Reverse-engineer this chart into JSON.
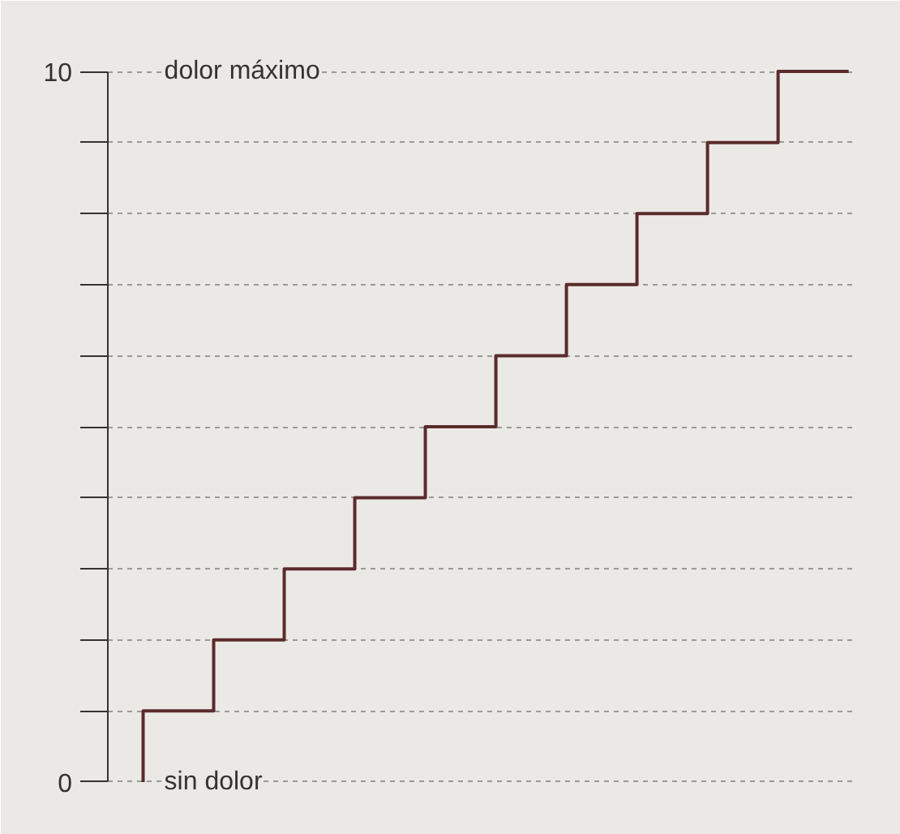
{
  "chart_data": {
    "type": "step",
    "categories": [
      null,
      null,
      null,
      null,
      null,
      null,
      null,
      null,
      null,
      null,
      null
    ],
    "values": [
      0,
      1,
      2,
      3,
      4,
      5,
      6,
      7,
      8,
      9,
      10
    ],
    "color": "#5b2b2b",
    "ylim": [
      0,
      10
    ],
    "yticks": [
      0,
      {
        "value": 1,
        "label": null
      },
      {
        "value": 2,
        "label": null
      },
      {
        "value": 3,
        "label": null
      },
      {
        "value": 4,
        "label": null
      },
      {
        "value": 5,
        "label": null
      },
      {
        "value": 6,
        "label": null
      },
      {
        "value": 7,
        "label": null
      },
      {
        "value": 8,
        "label": null
      },
      {
        "value": 9,
        "label": null
      },
      10
    ],
    "grid": "y",
    "tick_labels": "y",
    "line_style": "solid",
    "annotations": [
      "dolor máximo",
      "sin dolor"
    ]
  }
}
